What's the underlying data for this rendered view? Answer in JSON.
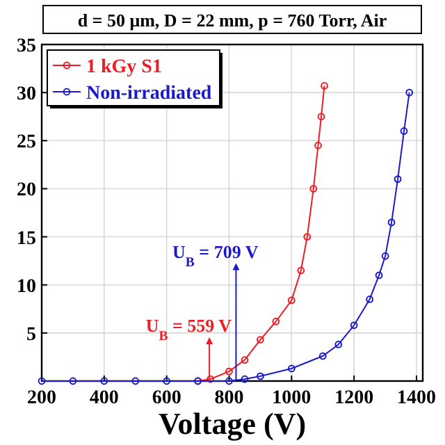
{
  "chart_data": {
    "type": "line",
    "xlabel": "Voltage (V)",
    "xlim": [
      200,
      1420
    ],
    "ylim": [
      0,
      35
    ],
    "xticks": [
      200,
      400,
      600,
      800,
      1000,
      1200,
      1400
    ],
    "yticks": [
      5,
      10,
      15,
      20,
      25,
      30,
      35
    ],
    "grid": true,
    "legend": "top left",
    "marker": "circle",
    "line_style": "solid",
    "series": [
      {
        "name": "1 kGy S1",
        "color": "#ee1c24",
        "x": [
          700,
          740,
          800,
          850,
          900,
          950,
          1000,
          1030,
          1050,
          1070,
          1085,
          1095,
          1105
        ],
        "values": [
          0,
          0.2,
          1.0,
          2.2,
          4.3,
          6.2,
          8.4,
          11.5,
          15,
          20,
          24.5,
          27.5,
          30.7
        ]
      },
      {
        "name": "Non-irradiated",
        "color": "#1a1acc",
        "x": [
          200,
          300,
          400,
          500,
          600,
          700,
          800,
          850,
          900,
          1000,
          1100,
          1150,
          1200,
          1250,
          1280,
          1300,
          1320,
          1340,
          1360,
          1377
        ],
        "values": [
          0,
          0,
          0,
          0,
          0,
          0,
          0,
          0.2,
          0.5,
          1.3,
          2.6,
          3.8,
          5.8,
          8.5,
          11,
          13,
          16.5,
          21,
          26,
          30
        ]
      }
    ],
    "annotations": [
      "d = 50 μm, D = 22 mm, p = 760 Torr, Air",
      "U$_{B}$ = 559 V",
      "U$_{B}$ = 709 V"
    ]
  }
}
